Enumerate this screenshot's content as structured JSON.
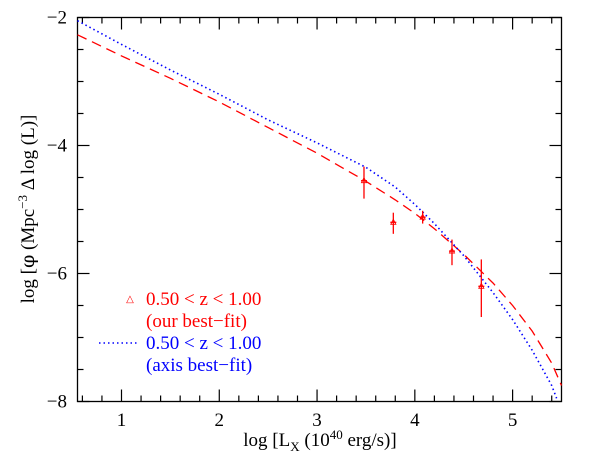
{
  "chart_data": {
    "type": "line",
    "title": "",
    "xlabel": {
      "main": "log [L",
      "sub": "X",
      "unit_open": " (10",
      "unit_sup": "40",
      "unit_close": " erg/s)]"
    },
    "ylabel": {
      "pre": "log [",
      "phi": "φ",
      "mpc": " (Mpc",
      "sup": "−3",
      "post": " Δ log (L)]"
    },
    "xlim": [
      0.55,
      5.5
    ],
    "ylim": [
      -8,
      -2
    ],
    "xticks": [
      1,
      2,
      3,
      4,
      5
    ],
    "yticks": [
      -8,
      -6,
      -4,
      -2
    ],
    "grid": false,
    "legend_position": "bottom-left",
    "colors": {
      "red": "#ff0000",
      "blue": "#0000ff",
      "axis": "#000000"
    },
    "series": [
      {
        "kind": "line",
        "style": "dashed",
        "color": "#ff0000",
        "x": [
          0.55,
          1.0,
          1.5,
          2.0,
          2.5,
          3.0,
          3.5,
          3.8,
          4.0,
          4.2,
          4.5,
          4.8,
          5.0,
          5.2,
          5.4,
          5.5
        ],
        "y": [
          -2.27,
          -2.6,
          -2.95,
          -3.32,
          -3.72,
          -4.12,
          -4.56,
          -4.85,
          -5.06,
          -5.3,
          -5.7,
          -6.15,
          -6.5,
          -6.9,
          -7.4,
          -7.75
        ]
      },
      {
        "kind": "line",
        "style": "dotted",
        "color": "#0000ff",
        "x": [
          0.55,
          1.0,
          1.5,
          2.0,
          2.5,
          3.0,
          3.5,
          3.8,
          4.0,
          4.2,
          4.5,
          4.8,
          5.0,
          5.2,
          5.4,
          5.45
        ],
        "y": [
          -2.05,
          -2.42,
          -2.82,
          -3.2,
          -3.6,
          -3.96,
          -4.34,
          -4.65,
          -4.92,
          -5.22,
          -5.72,
          -6.3,
          -6.72,
          -7.2,
          -7.75,
          -7.95
        ]
      },
      {
        "kind": "points",
        "marker": "triangle",
        "color": "#ff0000",
        "x": [
          3.48,
          3.78,
          4.08,
          4.38,
          4.68
        ],
        "y": [
          -4.55,
          -5.2,
          -5.12,
          -5.65,
          -6.2
        ],
        "yerr_low": [
          0.28,
          0.18,
          0.1,
          0.22,
          0.48
        ],
        "yerr_high": [
          0.22,
          0.15,
          0.1,
          0.18,
          0.42
        ]
      }
    ],
    "legend": [
      {
        "symbol": "triangle",
        "color": "#ff0000",
        "line1": "0.50 < z <  1.00",
        "line2": "(our best−fit)"
      },
      {
        "symbol": "dotted",
        "color": "#0000ff",
        "line1": "0.50 < z <  1.00",
        "line2": "(axis best−fit)"
      }
    ]
  }
}
